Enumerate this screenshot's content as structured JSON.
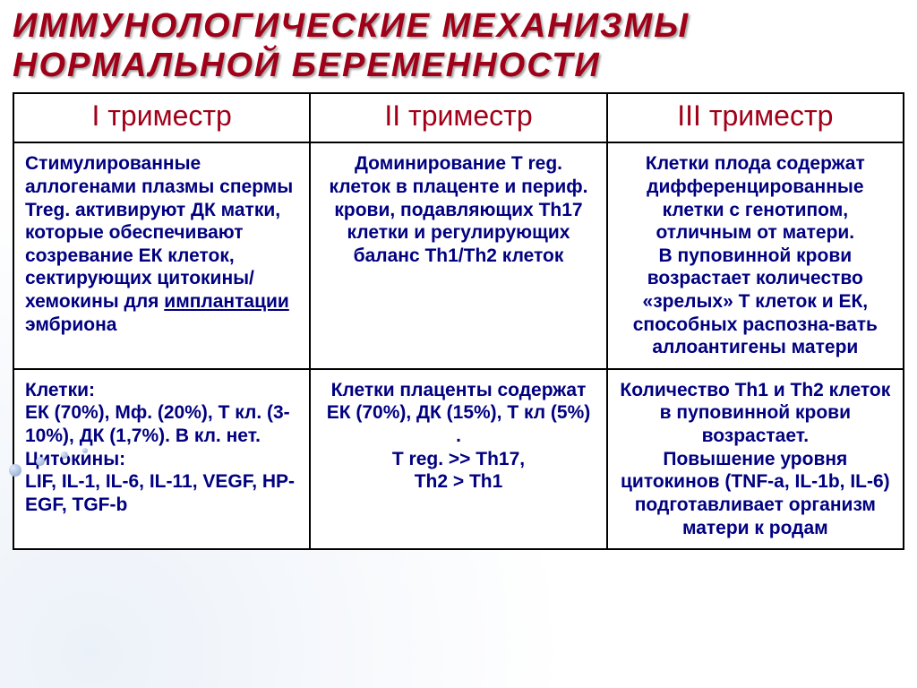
{
  "title_line1": "ИММУНОЛОГИЧЕСКИЕ  МЕХАНИЗМЫ",
  "title_line2": "НОРМАЛЬНОЙ  БЕРЕМЕННОСТИ",
  "colors": {
    "title": "#a00018",
    "header_text": "#a00018",
    "cell_text": "#000080",
    "border": "#000000",
    "background": "#ffffff"
  },
  "typography": {
    "title_fontsize": 38,
    "header_fontsize": 32,
    "cell_fontsize": 21,
    "font_family": "Arial"
  },
  "table": {
    "columns": 3,
    "headers": [
      "I  триместр",
      "II триместр",
      "III триместр"
    ],
    "rows": [
      {
        "align": [
          "left",
          "center",
          "center"
        ],
        "cells": [
          {
            "parts": [
              {
                "t": "Стимулированные аллогенами  плазмы спермы Treg. активируют ДК матки, которые обеспечивают созревание ЕК клеток, сектирующих цитокины/ хемокины для "
              },
              {
                "t": "имплантации",
                "underline": true
              },
              {
                "t": " эмбриона"
              }
            ]
          },
          {
            "text": "Доминирование T reg. клеток в плаценте и периф. крови, подавляющих Th17 клетки  и регулирующих баланс Th1/Th2 клеток"
          },
          {
            "text": "Клетки плода содержат дифференцированные клетки с генотипом, отличным от матери.\nВ пуповинной крови возрастает количество «зрелых» Т клеток и ЕК, способных распозна-вать аллоантигены матери"
          }
        ]
      },
      {
        "align": [
          "left",
          "center",
          "center"
        ],
        "cells": [
          {
            "text": "Клетки:\nЕК (70%), Мф. (20%), Т кл. (3-10%), ДК (1,7%). В кл. нет.\nЦитокины:\nLIF, IL-1, IL-6, IL-11, VEGF, HP-EGF, TGF-b"
          },
          {
            "text": "Клетки плаценты содержат\nЕК (70%), ДК (15%), Т кл (5%) .\nT reg. >> Th17,\nTh2 > Th1"
          },
          {
            "text": "Количество Th1 и Th2 клеток в пуповинной крови возрастает.\nПовышение уровня цитокинов (TNF-a, IL-1b, IL-6) подготавливает организм матери к родам"
          }
        ]
      }
    ]
  }
}
